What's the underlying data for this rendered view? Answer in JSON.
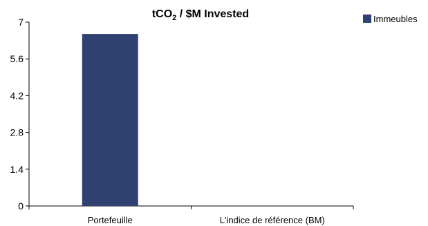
{
  "chart_data": {
    "type": "bar",
    "title": "tCO2 / $M Invested",
    "title_parts": {
      "pre": "tCO",
      "sub": "2",
      "post": " / $M Invested"
    },
    "categories": [
      "Portefeuille",
      "L'indice de référence (BM)"
    ],
    "series": [
      {
        "name": "Immeubles",
        "values": [
          6.55,
          0
        ],
        "color": "#2e4170"
      }
    ],
    "ylim": [
      0,
      7
    ],
    "yticks": [
      0,
      1.4,
      2.8,
      4.2,
      5.6,
      7
    ],
    "ytick_labels": [
      "0",
      "1.4",
      "2.8",
      "4.2",
      "5.6",
      "7"
    ],
    "grid": false,
    "legend_position": "top-right",
    "xlabel": "",
    "ylabel": ""
  }
}
